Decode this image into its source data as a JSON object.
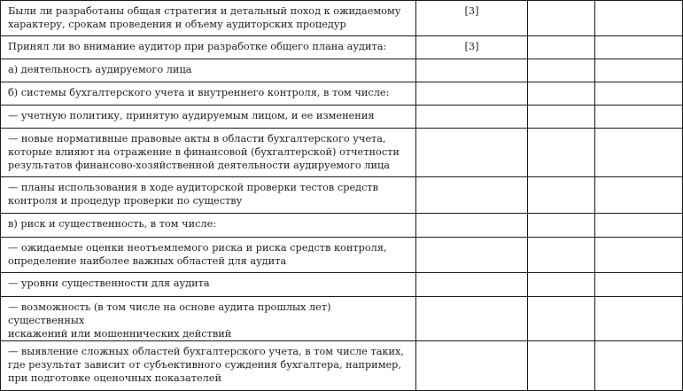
{
  "rows": [
    {
      "text": "Были ли разработаны общая стратегия и детальный поход к ожидаемому\nхарактеру, срокам проведения и объему аудиторских процедур",
      "ref": "[3]"
    },
    {
      "text": "Принял ли во внимание аудитор при разработке общего плана аудита:",
      "ref": "[3]"
    },
    {
      "text": "а) деятельность аудируемого лица",
      "ref": ""
    },
    {
      "text": "б) системы бухгалтерского учета и внутреннего контроля, в том числе:",
      "ref": ""
    },
    {
      "text": "— учетную политику, принятую аудируемым лицом, и ее изменения",
      "ref": ""
    },
    {
      "text": "— новые нормативные правовые акты в области бухгалтерского учета,\nкоторые влияют на отражение в финансовой (бухгалтерской) отчетности\nрезультатов финансово-хозяйственной деятельности аудируемого лица",
      "ref": ""
    },
    {
      "text": "— планы использования в ходе аудиторской проверки тестов средств\nконтроля и процедур проверки по существу",
      "ref": ""
    },
    {
      "text": "в) риск и существенность, в том числе:",
      "ref": ""
    },
    {
      "text": "— ожидаемые оценки неотъемлемого риска и риска средств контроля,\nопределение наиболее важных областей для аудита",
      "ref": ""
    },
    {
      "text": "— уровни существенности для аудита",
      "ref": ""
    },
    {
      "text": "— возможность (в том числе на основе аудита прошлых лет) существенных\nискажений или мошеннических действий",
      "ref": ""
    },
    {
      "text": "— выявление сложных областей бухгалтерского учета, в том числе таких,\nгде результат зависит от субъективного суждения бухгалтера, например,\nпри подготовке оценочных показателей",
      "ref": ""
    }
  ]
}
